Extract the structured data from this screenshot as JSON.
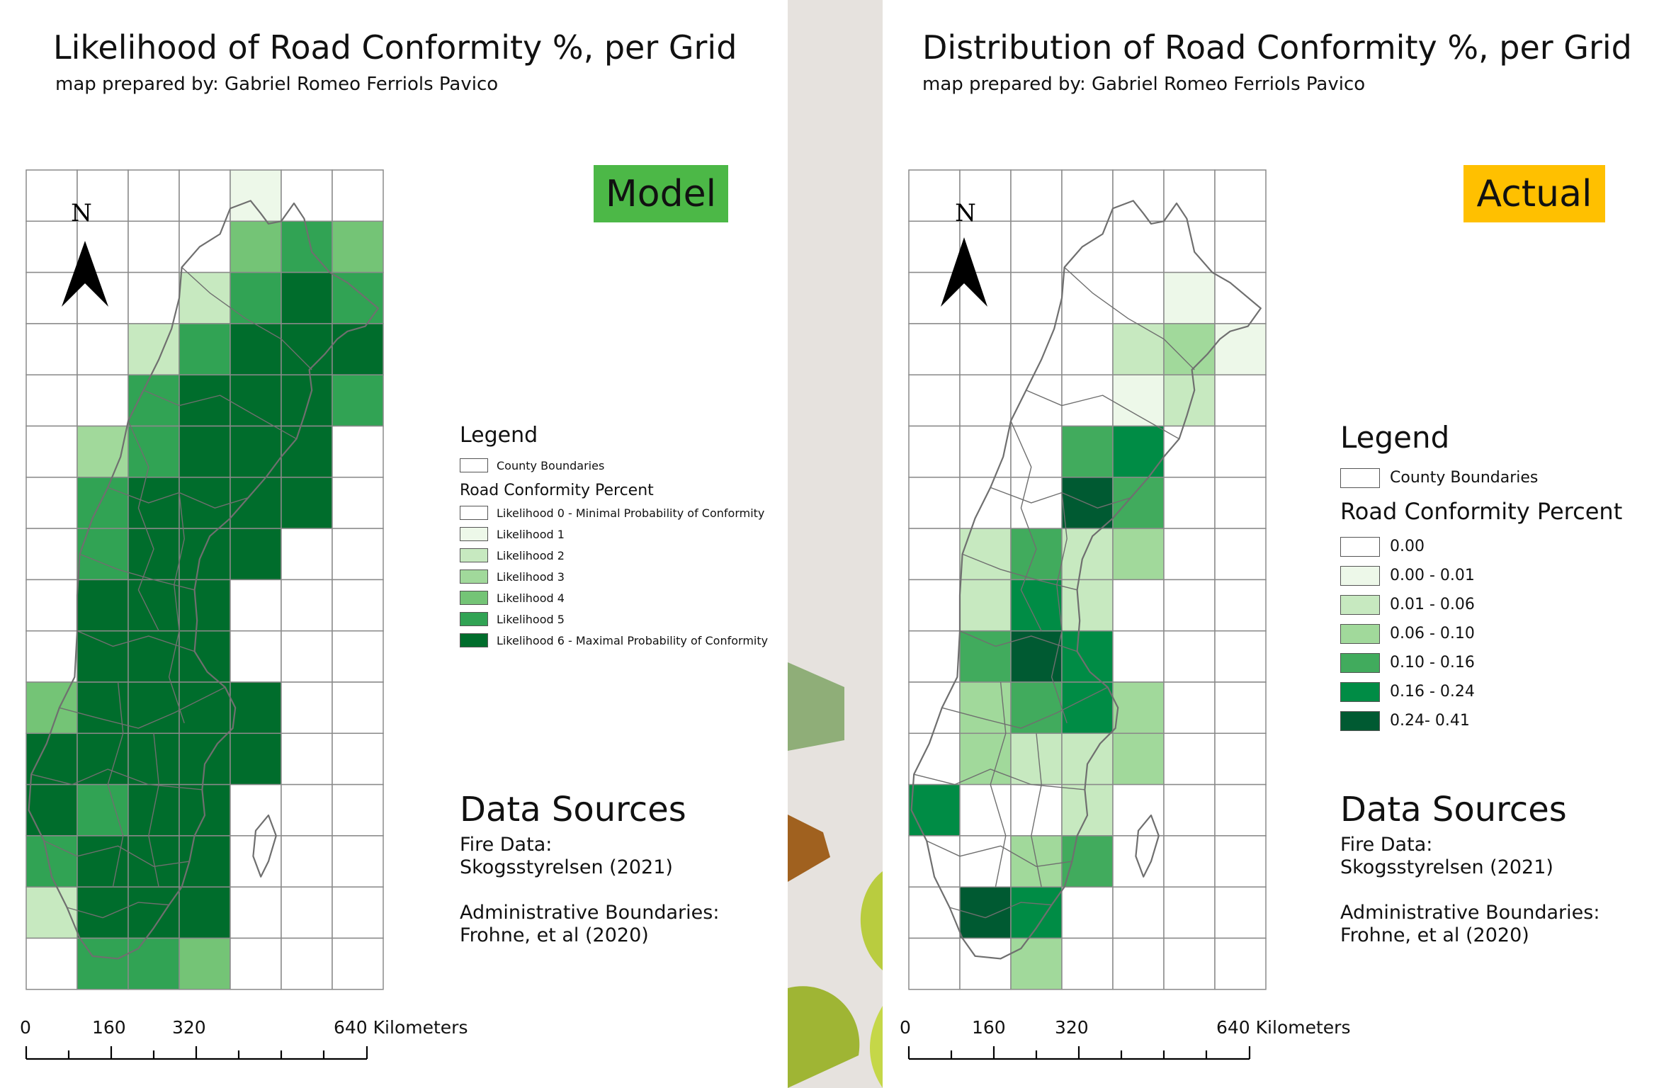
{
  "left_map": {
    "title": "Likelihood of Road Conformity %, per Grid",
    "subtitle": "map prepared by: Gabriel Romeo Ferriols Pavico",
    "badge": "Model",
    "badge_color": "#4cb847",
    "north_label": "N",
    "legend": {
      "title": "Legend",
      "boundary_label": "County Boundaries",
      "section_title": "Road Conformity Percent",
      "classes": [
        {
          "label": "Likelihood 0 - Minimal Probability of Conformity",
          "color": "#ffffff"
        },
        {
          "label": "Likelihood 1",
          "color": "#edf8e9"
        },
        {
          "label": "Likelihood 2",
          "color": "#c7e9c0"
        },
        {
          "label": "Likelihood 3",
          "color": "#a1d99b"
        },
        {
          "label": "Likelihood 4",
          "color": "#74c476"
        },
        {
          "label": "Likelihood 5",
          "color": "#31a354"
        },
        {
          "label": "Likelihood 6 - Maximal Probability of Conformity",
          "color": "#006d2c"
        }
      ]
    },
    "data_sources": {
      "title": "Data Sources",
      "lines": [
        "Fire Data:",
        "Skogsstyrelsen (2021)",
        "",
        "Administrative Boundaries:",
        "Frohne, et al (2020)"
      ]
    },
    "scale": {
      "labels": [
        "0",
        "160",
        "320",
        "640 Kilometers"
      ]
    },
    "grid_classes": [
      [
        0,
        0,
        0,
        0,
        1,
        0,
        0
      ],
      [
        0,
        0,
        0,
        0,
        4,
        5,
        4
      ],
      [
        0,
        0,
        0,
        2,
        5,
        6,
        5
      ],
      [
        0,
        0,
        2,
        5,
        6,
        6,
        6
      ],
      [
        0,
        0,
        5,
        6,
        6,
        6,
        5
      ],
      [
        0,
        3,
        5,
        6,
        6,
        6,
        0
      ],
      [
        0,
        5,
        6,
        6,
        6,
        6,
        0
      ],
      [
        0,
        5,
        6,
        6,
        6,
        0,
        0
      ],
      [
        0,
        6,
        6,
        6,
        0,
        0,
        0
      ],
      [
        0,
        6,
        6,
        6,
        0,
        0,
        0
      ],
      [
        4,
        6,
        6,
        6,
        6,
        0,
        0
      ],
      [
        6,
        6,
        6,
        6,
        6,
        0,
        0
      ],
      [
        6,
        5,
        6,
        6,
        0,
        0,
        0
      ],
      [
        5,
        6,
        6,
        6,
        0,
        0,
        0
      ],
      [
        2,
        6,
        6,
        6,
        0,
        0,
        0
      ],
      [
        0,
        5,
        5,
        4,
        0,
        0,
        0
      ]
    ]
  },
  "right_map": {
    "title": "Distribution of Road Conformity %, per Grid",
    "subtitle": "map prepared by: Gabriel Romeo Ferriols Pavico",
    "badge": "Actual",
    "badge_color": "#ffc000",
    "north_label": "N",
    "legend": {
      "title": "Legend",
      "boundary_label": "County Boundaries",
      "section_title": "Road Conformity Percent",
      "classes": [
        {
          "label": "0.00",
          "color": "#ffffff"
        },
        {
          "label": "0.00 - 0.01",
          "color": "#edf8e9"
        },
        {
          "label": "0.01 - 0.06",
          "color": "#c7e9c0"
        },
        {
          "label": "0.06 - 0.10",
          "color": "#a1d99b"
        },
        {
          "label": "0.10 - 0.16",
          "color": "#41ab5d"
        },
        {
          "label": "0.16 - 0.24",
          "color": "#008c45"
        },
        {
          "label": "0.24- 0.41",
          "color": "#005a32"
        }
      ]
    },
    "data_sources": {
      "title": "Data Sources",
      "lines": [
        "Fire Data:",
        "Skogsstyrelsen (2021)",
        "",
        "Administrative Boundaries:",
        "Frohne, et al (2020)"
      ]
    },
    "scale": {
      "labels": [
        "0",
        "160",
        "320",
        "640 Kilometers"
      ]
    },
    "grid_classes": [
      [
        0,
        0,
        0,
        0,
        0,
        0,
        0
      ],
      [
        0,
        0,
        0,
        0,
        0,
        0,
        0
      ],
      [
        0,
        0,
        0,
        0,
        0,
        1,
        0
      ],
      [
        0,
        0,
        0,
        0,
        2,
        3,
        1
      ],
      [
        0,
        0,
        0,
        0,
        1,
        2,
        0
      ],
      [
        0,
        0,
        0,
        4,
        5,
        0,
        0
      ],
      [
        0,
        0,
        0,
        6,
        4,
        0,
        0
      ],
      [
        0,
        2,
        4,
        2,
        3,
        0,
        0
      ],
      [
        0,
        2,
        5,
        2,
        0,
        0,
        0
      ],
      [
        0,
        4,
        6,
        5,
        0,
        0,
        0
      ],
      [
        0,
        3,
        4,
        5,
        3,
        0,
        0
      ],
      [
        0,
        3,
        2,
        2,
        3,
        0,
        0
      ],
      [
        5,
        0,
        0,
        2,
        0,
        0,
        0
      ],
      [
        0,
        0,
        3,
        4,
        0,
        0,
        0
      ],
      [
        0,
        6,
        5,
        0,
        0,
        0,
        0
      ],
      [
        0,
        0,
        3,
        0,
        0,
        0,
        0
      ]
    ]
  }
}
